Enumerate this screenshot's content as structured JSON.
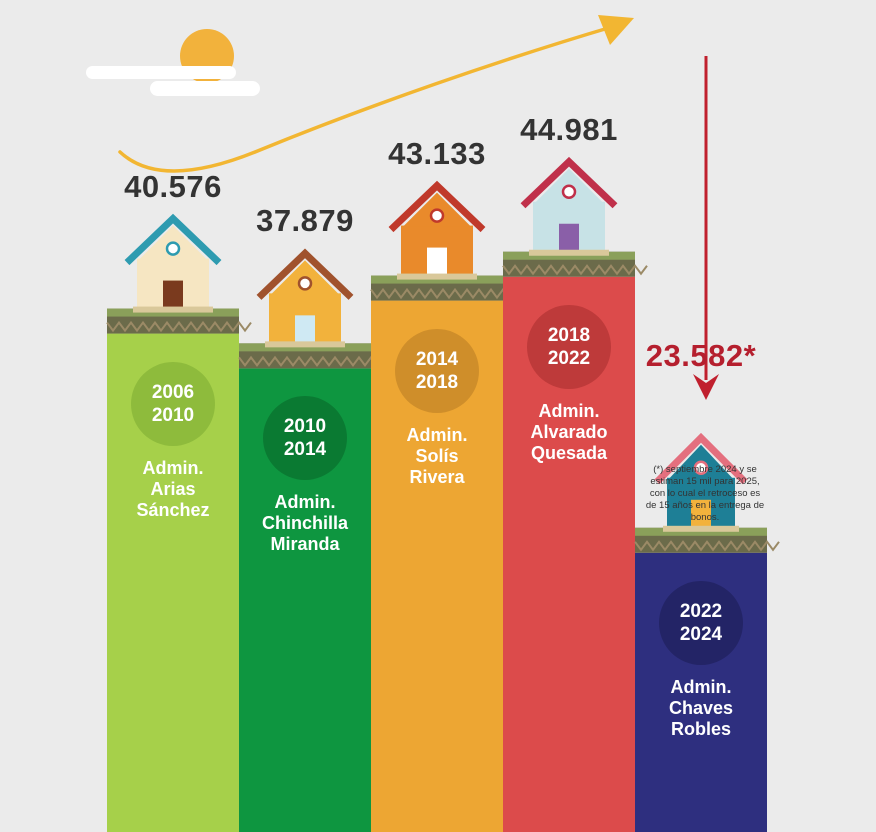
{
  "chart_data": {
    "type": "bar",
    "categories": [
      "2006 2010",
      "2010 2014",
      "2014 2018",
      "2018 2022",
      "2022 2024"
    ],
    "values": [
      40576,
      37879,
      43133,
      44981,
      23582
    ],
    "ylim": [
      0,
      46000
    ],
    "grid": false,
    "legend": "none",
    "bars": [
      {
        "period_top": "2006",
        "period_bottom": "2010",
        "admin": [
          "Admin.",
          "Arias",
          "Sánchez"
        ],
        "value_label": "40.576",
        "color": "#a6d04a",
        "circle_color": "#8ebb3c"
      },
      {
        "period_top": "2010",
        "period_bottom": "2014",
        "admin": [
          "Admin.",
          "Chinchilla",
          "Miranda"
        ],
        "value_label": "37.879",
        "color": "#0e9640",
        "circle_color": "#0a7a32"
      },
      {
        "period_top": "2014",
        "period_bottom": "2018",
        "admin": [
          "Admin.",
          "Solís",
          "Rivera"
        ],
        "value_label": "43.133",
        "color": "#eda633",
        "circle_color": "#cf8e2a"
      },
      {
        "period_top": "2018",
        "period_bottom": "2022",
        "admin": [
          "Admin.",
          "Alvarado",
          "Quesada"
        ],
        "value_label": "44.981",
        "color": "#dc4b4b",
        "circle_color": "#be3a3a"
      },
      {
        "period_top": "2022",
        "period_bottom": "2024",
        "admin": [
          "Admin.",
          "Chaves",
          "Robles"
        ],
        "value_label": "23.582*",
        "color": "#2e2f7f",
        "circle_color": "#232466"
      }
    ],
    "annotation": "(*) septiembre 2024 y se estiman 15 mil para 2025, con lo cual el retroceso es de 15 años en la entrega de bonos."
  },
  "colors": {
    "background": "#ebebeb",
    "value_text": "#333333",
    "highlight_value": "#b51f2e",
    "trend_arrow": "#f2b632",
    "drop_arrow": "#c0202e",
    "sun": "#f2b23c",
    "ground": "#6b6b4a"
  },
  "icons": [
    "sun-icon",
    "cloud-icon",
    "house-icon",
    "trend-up-arrow",
    "drop-down-arrow"
  ]
}
